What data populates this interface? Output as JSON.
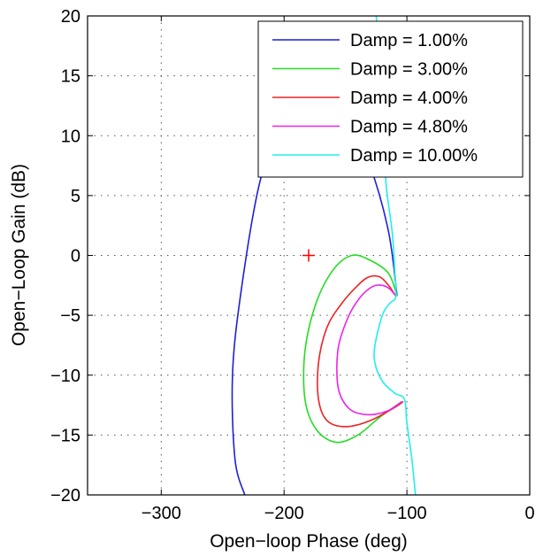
{
  "chart_data": {
    "type": "line",
    "xlabel": "Open−loop Phase (deg)",
    "ylabel": "Open−Loop Gain (dB)",
    "xlim": [
      -360,
      0
    ],
    "ylim": [
      -20,
      20
    ],
    "xticks": [
      -300,
      -200,
      -100,
      0
    ],
    "yticks": [
      20,
      15,
      10,
      5,
      0,
      -5,
      -10,
      -15,
      -20
    ],
    "xtick_labels": [
      "−300",
      "−200",
      "−100",
      "0"
    ],
    "ytick_labels": [
      "20",
      "15",
      "10",
      "5",
      "0",
      "−5",
      "−10",
      "−15",
      "−20"
    ],
    "grid": true,
    "legend_position": "top-right",
    "critical_point": {
      "x": -180,
      "y": 0,
      "color": "#ff0000"
    },
    "series": [
      {
        "name": "Damp = 1.00%",
        "color": "#1f1fd6",
        "points": [
          [
            -108,
            -3.4
          ],
          [
            -115,
            2
          ],
          [
            -130,
            7.5
          ],
          [
            -150,
            12
          ],
          [
            -175,
            14
          ],
          [
            -200,
            12
          ],
          [
            -220,
            6
          ],
          [
            -235,
            -3
          ],
          [
            -242,
            -10
          ],
          [
            -240,
            -17
          ],
          [
            -232,
            -20
          ]
        ]
      },
      {
        "name": "Damp = 3.00%",
        "color": "#22dd22",
        "points": [
          [
            -108,
            -3.4
          ],
          [
            -115,
            -1.5
          ],
          [
            -130,
            -0.4
          ],
          [
            -145,
            0
          ],
          [
            -160,
            -1.2
          ],
          [
            -174,
            -4
          ],
          [
            -183,
            -8
          ],
          [
            -183,
            -12
          ],
          [
            -174,
            -14.5
          ],
          [
            -158,
            -15.6
          ],
          [
            -140,
            -15
          ],
          [
            -122,
            -13.5
          ],
          [
            -104,
            -12.2
          ]
        ]
      },
      {
        "name": "Damp = 4.00%",
        "color": "#ee2222",
        "points": [
          [
            -109,
            -3.4
          ],
          [
            -115,
            -2.5
          ],
          [
            -122,
            -1.8
          ],
          [
            -131,
            -1.8
          ],
          [
            -140,
            -2.5
          ],
          [
            -153,
            -4
          ],
          [
            -165,
            -6
          ],
          [
            -172,
            -9
          ],
          [
            -172,
            -12
          ],
          [
            -165,
            -13.8
          ],
          [
            -150,
            -14.3
          ],
          [
            -130,
            -13.8
          ],
          [
            -110,
            -12.7
          ],
          [
            -103,
            -12.2
          ]
        ]
      },
      {
        "name": "Damp = 4.80%",
        "color": "#ee22ee",
        "points": [
          [
            -109,
            -3.4
          ],
          [
            -114,
            -2.8
          ],
          [
            -120,
            -2.5
          ],
          [
            -128,
            -2.6
          ],
          [
            -138,
            -3.5
          ],
          [
            -148,
            -5.2
          ],
          [
            -156,
            -7.8
          ],
          [
            -156,
            -11
          ],
          [
            -147,
            -12.8
          ],
          [
            -132,
            -13.3
          ],
          [
            -116,
            -13
          ],
          [
            -104,
            -12.2
          ]
        ]
      },
      {
        "name": "Damp = 10.00%",
        "color": "#22eeee",
        "points": [
          [
            -125,
            20
          ],
          [
            -121,
            15
          ],
          [
            -118,
            10
          ],
          [
            -117,
            6
          ],
          [
            -112,
            2
          ],
          [
            -110,
            -1
          ],
          [
            -109,
            -3.4
          ],
          [
            -114,
            -4
          ],
          [
            -120,
            -5
          ],
          [
            -126,
            -7.5
          ],
          [
            -126,
            -9
          ],
          [
            -120,
            -10.5
          ],
          [
            -110,
            -11.5
          ],
          [
            -102,
            -12
          ],
          [
            -100,
            -14
          ],
          [
            -96,
            -17
          ],
          [
            -93,
            -20
          ]
        ]
      }
    ]
  }
}
